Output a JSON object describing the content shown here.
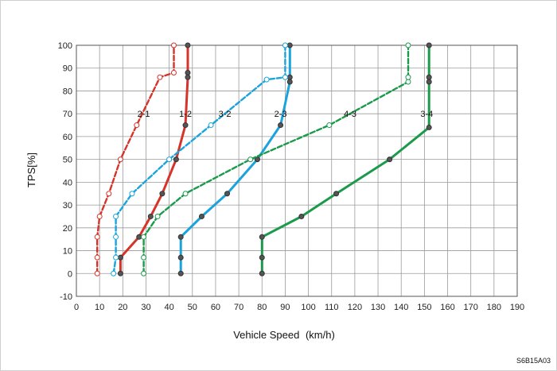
{
  "figure_code": "S6B15A03",
  "chart_data": {
    "type": "line",
    "xlabel": "Vehicle Speed",
    "xunit": "(km/h)",
    "ylabel": "TPS[%]",
    "xlim": [
      0,
      190
    ],
    "ylim": [
      -10,
      100
    ],
    "x_ticks": [
      "0",
      "10",
      "20",
      "30",
      "40",
      "50",
      "60",
      "70",
      "80",
      "90",
      "100",
      "110",
      "120",
      "130",
      "140",
      "150",
      "160",
      "170",
      "180",
      "190"
    ],
    "y_ticks": [
      "100",
      "90",
      "80",
      "70",
      "60",
      "50",
      "40",
      "30",
      "20",
      "10",
      "0",
      "-10"
    ],
    "grid": true,
    "series": [
      {
        "name": "1-2",
        "color": "#d6332a",
        "dash": false,
        "marker": "filled",
        "points": [
          [
            19,
            0
          ],
          [
            19,
            7
          ],
          [
            27,
            16
          ],
          [
            32,
            25
          ],
          [
            37,
            35
          ],
          [
            43,
            50
          ],
          [
            47,
            65
          ],
          [
            48,
            86
          ],
          [
            48,
            88
          ],
          [
            48,
            100
          ]
        ]
      },
      {
        "name": "2-1",
        "color": "#d6332a",
        "dash": true,
        "marker": "open",
        "points": [
          [
            9,
            0
          ],
          [
            9,
            7
          ],
          [
            9,
            16
          ],
          [
            10,
            25
          ],
          [
            14,
            35
          ],
          [
            19,
            50
          ],
          [
            26,
            65
          ],
          [
            36,
            86
          ],
          [
            42,
            88
          ],
          [
            42,
            100
          ]
        ]
      },
      {
        "name": "2-3",
        "color": "#1aa3dc",
        "dash": false,
        "marker": "filled",
        "points": [
          [
            45,
            0
          ],
          [
            45,
            7
          ],
          [
            45,
            16
          ],
          [
            54,
            25
          ],
          [
            65,
            35
          ],
          [
            78,
            50
          ],
          [
            88,
            65
          ],
          [
            92,
            84
          ],
          [
            92,
            86
          ],
          [
            92,
            100
          ]
        ]
      },
      {
        "name": "3-2",
        "color": "#1aa3dc",
        "dash": true,
        "marker": "open",
        "points": [
          [
            16,
            0
          ],
          [
            17,
            7
          ],
          [
            17,
            16
          ],
          [
            17,
            25
          ],
          [
            24,
            35
          ],
          [
            40,
            50
          ],
          [
            58,
            65
          ],
          [
            82,
            85
          ],
          [
            90,
            86
          ],
          [
            90,
            100
          ]
        ]
      },
      {
        "name": "3-4",
        "color": "#1a9a4a",
        "dash": false,
        "marker": "filled",
        "points": [
          [
            80,
            0
          ],
          [
            80,
            7
          ],
          [
            80,
            16
          ],
          [
            97,
            25
          ],
          [
            112,
            35
          ],
          [
            135,
            50
          ],
          [
            152,
            64
          ],
          [
            152,
            84
          ],
          [
            152,
            86
          ],
          [
            152,
            100
          ]
        ]
      },
      {
        "name": "4-3",
        "color": "#1a9a4a",
        "dash": true,
        "marker": "open",
        "points": [
          [
            29,
            0
          ],
          [
            29,
            7
          ],
          [
            29,
            16
          ],
          [
            35,
            25
          ],
          [
            47,
            35
          ],
          [
            75,
            50
          ],
          [
            109,
            65
          ],
          [
            143,
            84
          ],
          [
            143,
            86
          ],
          [
            143,
            100
          ]
        ]
      }
    ],
    "series_labels": [
      {
        "text": "2-1",
        "x": 29,
        "y": 70
      },
      {
        "text": "1-2",
        "x": 47,
        "y": 70
      },
      {
        "text": "3-2",
        "x": 64,
        "y": 70
      },
      {
        "text": "2-3",
        "x": 88,
        "y": 70
      },
      {
        "text": "4-3",
        "x": 118,
        "y": 70
      },
      {
        "text": "3-4",
        "x": 151,
        "y": 70
      }
    ]
  }
}
